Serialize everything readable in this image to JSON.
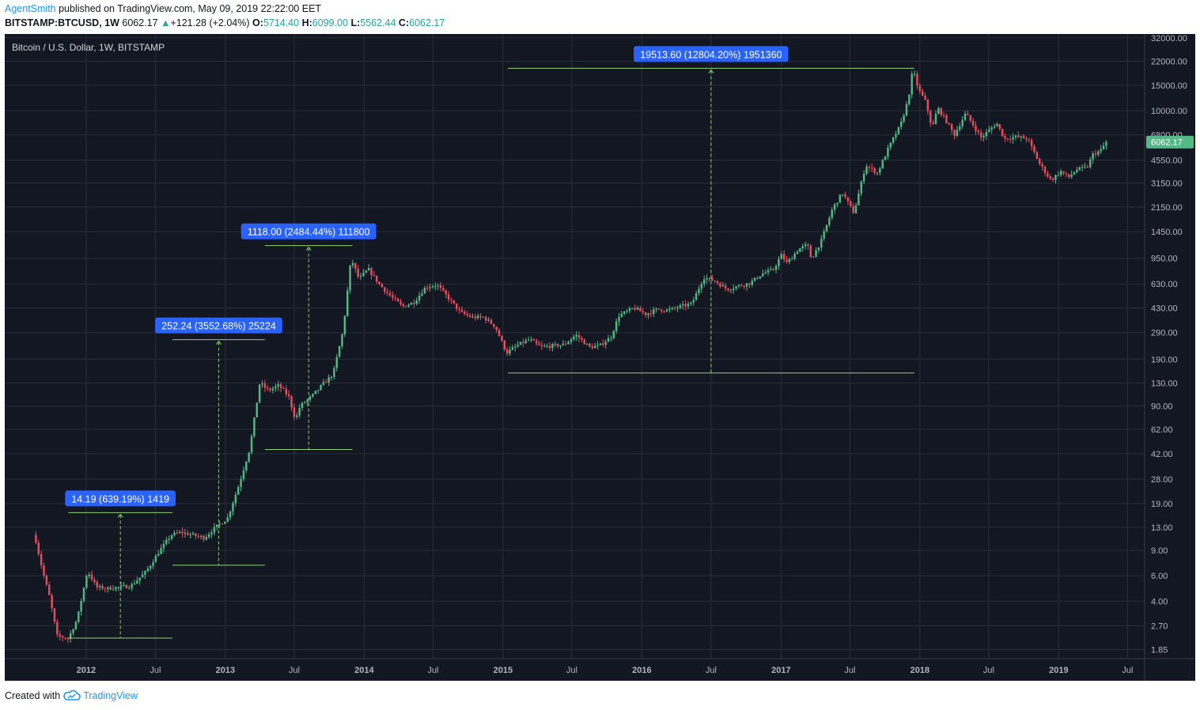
{
  "header": {
    "author": "AgentSmith",
    "published_text": "published on TradingView.com, May 09, 2019 22:22:00 EET",
    "symbol": "BITSTAMP:BTCUSD, 1W",
    "last": "6062.17",
    "change_arrow": "▲",
    "change": "+121.28 (+2.04%)",
    "o_label": "O:",
    "o": "5714.40",
    "h_label": "H:",
    "h": "6099.00",
    "l_label": "L:",
    "l": "5562.44",
    "c_label": "C:",
    "c": "6062.17"
  },
  "footer": {
    "created_with": "Created with",
    "brand": "TradingView",
    "logo_icon": "tradingview-cloud-icon"
  },
  "colors": {
    "background": "#131722",
    "grid": "#2a2e39",
    "up": "#53b987",
    "down": "#eb4d5c",
    "measure_line": "#8fd175",
    "label_bg": "#2962ff",
    "axis_text": "#b2b5be"
  },
  "chart_data": {
    "type": "candlestick",
    "title": "Bitcoin / U.S. Dollar, 1W, BITSTAMP",
    "scale": "log",
    "ylim": [
      1.6,
      34000
    ],
    "xlim": [
      "2011-06-01",
      "2019-08-15"
    ],
    "y_ticks": [
      "32000.00",
      "22000.00",
      "15000.00",
      "10000.00",
      "6800.00",
      "4550.00",
      "3150.00",
      "2150.00",
      "1450.00",
      "950.00",
      "630.00",
      "430.00",
      "290.00",
      "190.00",
      "130.00",
      "90.00",
      "62.00",
      "42.00",
      "28.00",
      "19.00",
      "13.00",
      "9.00",
      "6.00",
      "4.00",
      "2.70",
      "1.85"
    ],
    "x_ticks": [
      {
        "label": "2012",
        "date": "2012-01-01"
      },
      {
        "label": "Jul",
        "date": "2012-07-01"
      },
      {
        "label": "2013",
        "date": "2013-01-01"
      },
      {
        "label": "Jul",
        "date": "2013-07-01"
      },
      {
        "label": "2014",
        "date": "2014-01-01"
      },
      {
        "label": "Jul",
        "date": "2014-07-01"
      },
      {
        "label": "2015",
        "date": "2015-01-01"
      },
      {
        "label": "Jul",
        "date": "2015-07-01"
      },
      {
        "label": "2016",
        "date": "2016-01-01"
      },
      {
        "label": "Jul",
        "date": "2016-07-01"
      },
      {
        "label": "2017",
        "date": "2017-01-01"
      },
      {
        "label": "Jul",
        "date": "2017-07-01"
      },
      {
        "label": "2018",
        "date": "2018-01-01"
      },
      {
        "label": "Jul",
        "date": "2018-07-01"
      },
      {
        "label": "2019",
        "date": "2019-01-01"
      },
      {
        "label": "Jul",
        "date": "2019-07-01"
      }
    ],
    "last_price": 6062.17,
    "last_price_label": "6062.17",
    "price_path": [
      [
        "2011-08-22",
        11.5
      ],
      [
        "2011-09-12",
        6.5
      ],
      [
        "2011-10-01",
        4.2
      ],
      [
        "2011-10-20",
        2.3
      ],
      [
        "2011-11-18",
        2.2
      ],
      [
        "2011-12-12",
        3.0
      ],
      [
        "2012-01-08",
        6.5
      ],
      [
        "2012-02-01",
        5.0
      ],
      [
        "2012-03-01",
        4.9
      ],
      [
        "2012-04-01",
        5.0
      ],
      [
        "2012-05-01",
        5.1
      ],
      [
        "2012-06-10",
        6.4
      ],
      [
        "2012-07-10",
        8.5
      ],
      [
        "2012-08-15",
        11.5
      ],
      [
        "2012-09-10",
        12.0
      ],
      [
        "2012-10-10",
        11.5
      ],
      [
        "2012-11-10",
        11.0
      ],
      [
        "2012-12-10",
        13.0
      ],
      [
        "2013-01-10",
        15.0
      ],
      [
        "2013-02-10",
        26.0
      ],
      [
        "2013-03-10",
        46.0
      ],
      [
        "2013-04-05",
        130.0
      ],
      [
        "2013-04-28",
        115.0
      ],
      [
        "2013-05-25",
        125.0
      ],
      [
        "2013-06-20",
        105.0
      ],
      [
        "2013-07-08",
        72.0
      ],
      [
        "2013-07-20",
        90.0
      ],
      [
        "2013-08-20",
        105.0
      ],
      [
        "2013-09-15",
        125.0
      ],
      [
        "2013-10-15",
        150.0
      ],
      [
        "2013-11-10",
        300.0
      ],
      [
        "2013-12-01",
        950.0
      ],
      [
        "2013-12-22",
        680.0
      ],
      [
        "2014-01-15",
        800.0
      ],
      [
        "2014-02-15",
        620.0
      ],
      [
        "2014-03-15",
        520.0
      ],
      [
        "2014-04-15",
        440.0
      ],
      [
        "2014-05-15",
        470.0
      ],
      [
        "2014-06-15",
        600.0
      ],
      [
        "2014-07-15",
        620.0
      ],
      [
        "2014-08-15",
        500.0
      ],
      [
        "2014-09-15",
        400.0
      ],
      [
        "2014-10-15",
        370.0
      ],
      [
        "2014-11-15",
        370.0
      ],
      [
        "2014-12-15",
        320.0
      ],
      [
        "2015-01-14",
        210.0
      ],
      [
        "2015-02-15",
        240.0
      ],
      [
        "2015-03-15",
        260.0
      ],
      [
        "2015-04-15",
        230.0
      ],
      [
        "2015-05-15",
        235.0
      ],
      [
        "2015-06-15",
        240.0
      ],
      [
        "2015-07-15",
        280.0
      ],
      [
        "2015-08-20",
        230.0
      ],
      [
        "2015-09-15",
        235.0
      ],
      [
        "2015-10-15",
        270.0
      ],
      [
        "2015-11-05",
        380.0
      ],
      [
        "2015-12-15",
        430.0
      ],
      [
        "2016-01-15",
        390.0
      ],
      [
        "2016-02-15",
        420.0
      ],
      [
        "2016-03-15",
        415.0
      ],
      [
        "2016-04-15",
        440.0
      ],
      [
        "2016-05-15",
        460.0
      ],
      [
        "2016-06-15",
        700.0
      ],
      [
        "2016-07-15",
        660.0
      ],
      [
        "2016-08-15",
        580.0
      ],
      [
        "2016-09-15",
        610.0
      ],
      [
        "2016-10-15",
        640.0
      ],
      [
        "2016-11-15",
        740.0
      ],
      [
        "2016-12-15",
        790.0
      ],
      [
        "2017-01-05",
        1000.0
      ],
      [
        "2017-01-20",
        880.0
      ],
      [
        "2017-02-20",
        1100.0
      ],
      [
        "2017-03-15",
        1180.0
      ],
      [
        "2017-03-25",
        940.0
      ],
      [
        "2017-04-20",
        1250.0
      ],
      [
        "2017-05-20",
        2100.0
      ],
      [
        "2017-06-15",
        2700.0
      ],
      [
        "2017-07-15",
        1950.0
      ],
      [
        "2017-08-15",
        4200.0
      ],
      [
        "2017-09-15",
        3700.0
      ],
      [
        "2017-10-15",
        5600.0
      ],
      [
        "2017-11-15",
        8000.0
      ],
      [
        "2017-12-05",
        12000.0
      ],
      [
        "2017-12-17",
        19400.0
      ],
      [
        "2018-01-01",
        14000.0
      ],
      [
        "2018-01-20",
        11500.0
      ],
      [
        "2018-02-06",
        7500.0
      ],
      [
        "2018-02-20",
        10500.0
      ],
      [
        "2018-03-15",
        8500.0
      ],
      [
        "2018-04-05",
        6800.0
      ],
      [
        "2018-05-05",
        9600.0
      ],
      [
        "2018-06-15",
        6500.0
      ],
      [
        "2018-07-25",
        8200.0
      ],
      [
        "2018-08-15",
        6400.0
      ],
      [
        "2018-09-15",
        6600.0
      ],
      [
        "2018-10-15",
        6400.0
      ],
      [
        "2018-11-15",
        4300.0
      ],
      [
        "2018-12-15",
        3300.0
      ],
      [
        "2019-01-10",
        3800.0
      ],
      [
        "2019-01-30",
        3450.0
      ],
      [
        "2019-02-20",
        3900.0
      ],
      [
        "2019-03-20",
        4050.0
      ],
      [
        "2019-04-05",
        5000.0
      ],
      [
        "2019-04-25",
        5300.0
      ],
      [
        "2019-05-09",
        6062.17
      ]
    ],
    "measurements": [
      {
        "label": "14.19 (639.19%) 1419",
        "start_date": "2011-11-15",
        "end_date": "2012-08-15",
        "low": 2.22,
        "high": 16.41
      },
      {
        "label": "252.24 (3552.68%) 25224",
        "start_date": "2012-08-15",
        "end_date": "2013-04-15",
        "low": 7.1,
        "high": 259.34
      },
      {
        "label": "1118.00 (2484.44%) 111800",
        "start_date": "2013-04-15",
        "end_date": "2013-12-01",
        "low": 45.0,
        "high": 1163.0
      },
      {
        "label": "19513.60 (12804.20%) 1951360",
        "start_date": "2015-01-14",
        "end_date": "2017-12-17",
        "low": 152.4,
        "high": 19666.0
      }
    ]
  }
}
